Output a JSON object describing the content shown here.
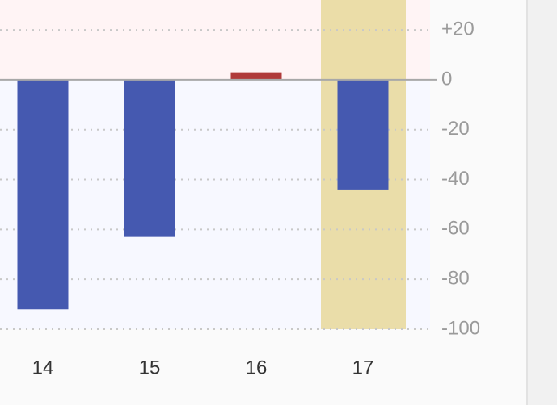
{
  "chart_data": {
    "type": "bar",
    "categories": [
      "14",
      "15",
      "16",
      "17"
    ],
    "values": [
      -92,
      -63,
      3,
      -44
    ],
    "positive_color": "#b03a3a",
    "negative_color": "#4559b0",
    "highlight": "17",
    "highlight_color": "#e8d89a",
    "ylim": [
      -100,
      32
    ],
    "yticks": [
      {
        "value": 20,
        "label": "+20"
      },
      0,
      -20,
      -40,
      -60,
      -80,
      -100
    ],
    "grid": true
  }
}
